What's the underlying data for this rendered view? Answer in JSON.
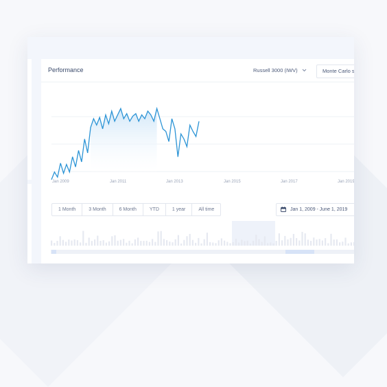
{
  "panel": {
    "title": "Performance",
    "benchmark_select": "Russell 3000 (IWV)",
    "simulation_button": "Monte Carlo s"
  },
  "time_axis": {
    "labels": [
      "Jan 2009",
      "Jan 2011",
      "Jan 2013",
      "Jan 2015",
      "Jan 2017",
      "Jan 2019"
    ]
  },
  "range_buttons": [
    "1 Month",
    "3 Month",
    "6 Month",
    "YTD",
    "1 year",
    "All time"
  ],
  "date_range": "Jan 1, 2009 - June 1, 2019",
  "colors": {
    "line": "#2a93d5",
    "fill_top": "#cfe6f8",
    "grid": "#eef1f5",
    "navigator_bars": "#e6e9f1",
    "navigator_highlight": "#eef2fa"
  },
  "icons": {
    "dropdown": "chevron-down-icon",
    "date": "calendar-icon"
  },
  "chart_data": {
    "type": "line",
    "x_range": [
      "2009-01",
      "2019-06"
    ],
    "series": [
      {
        "values": [
          12,
          18,
          14,
          25,
          17,
          24,
          18,
          30,
          22,
          35,
          26,
          44,
          33,
          53,
          60,
          55,
          61,
          52,
          63,
          56,
          66,
          58,
          63,
          68,
          60,
          64,
          58,
          62,
          64,
          58,
          63,
          60,
          66,
          63,
          58,
          68,
          60,
          52,
          50,
          42,
          60,
          52,
          30,
          48,
          44,
          38,
          55,
          50,
          46,
          58
        ]
      }
    ],
    "grid": true
  }
}
